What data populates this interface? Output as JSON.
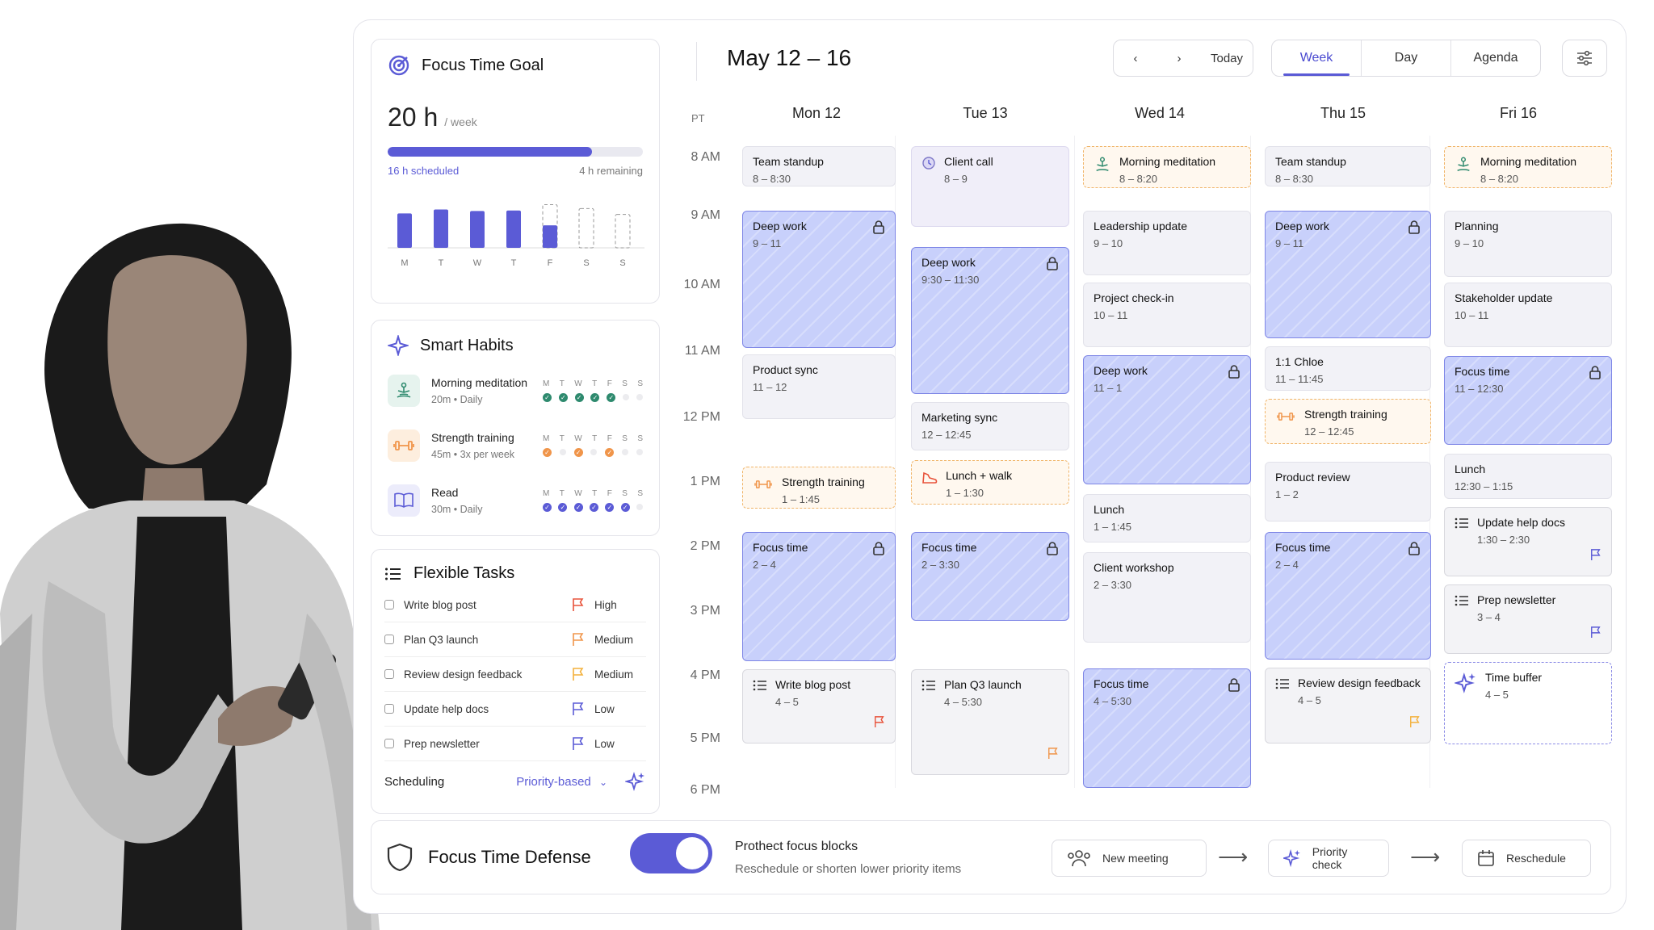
{
  "goal": {
    "title": "Focus Time Goal",
    "hours": "20 h",
    "unit": "/ week",
    "scheduled": "16 h scheduled",
    "remaining": "4 h remaining",
    "progress": 0.8,
    "days": [
      "M",
      "T",
      "W",
      "T",
      "F",
      "S",
      "S"
    ],
    "bars": [
      {
        "v": 0.7,
        "kind": "done"
      },
      {
        "v": 0.78,
        "kind": "done"
      },
      {
        "v": 0.75,
        "kind": "done"
      },
      {
        "v": 0.76,
        "kind": "done"
      },
      {
        "v": 0.88,
        "kind": "partial",
        "filled": 0.52
      },
      {
        "v": 0.8,
        "kind": "empty"
      },
      {
        "v": 0.68,
        "kind": "empty"
      }
    ]
  },
  "habits": {
    "title": "Smart Habits",
    "day_letters": [
      "M",
      "T",
      "W",
      "T",
      "F",
      "S",
      "S"
    ],
    "items": [
      {
        "name": "Morning meditation",
        "dur": "20m",
        "freq": "Daily",
        "color": "#2e8a6e",
        "icon": "meditation-icon",
        "dots": [
          1,
          1,
          1,
          1,
          1,
          0,
          0
        ]
      },
      {
        "name": "Strength training",
        "dur": "45m",
        "freq": "3x per week",
        "color": "#f0954a",
        "icon": "dumbbell-icon",
        "dots": [
          1,
          0,
          1,
          0,
          1,
          0,
          0
        ]
      },
      {
        "name": "Read",
        "dur": "30m",
        "freq": "Daily",
        "color": "#5b5bd6",
        "icon": "book-icon",
        "dots": [
          1,
          1,
          1,
          1,
          1,
          1,
          0
        ]
      }
    ]
  },
  "tasks": {
    "title": "Flexible Tasks",
    "items": [
      {
        "name": "Write blog post",
        "priority": "High",
        "color": "#e8533b"
      },
      {
        "name": "Plan Q3 launch",
        "priority": "Medium",
        "color": "#f0954a"
      },
      {
        "name": "Review design feedback",
        "priority": "Medium",
        "color": "#f3b13c"
      },
      {
        "name": "Update help docs",
        "priority": "Low",
        "color": "#5b5bd6"
      },
      {
        "name": "Prep newsletter",
        "priority": "Low",
        "color": "#5b5bd6"
      }
    ],
    "scheduling_label": "Scheduling",
    "scheduling_value": "Priority-based"
  },
  "calendar": {
    "title": "May 12 – 16",
    "today": "Today",
    "views": [
      "Week",
      "Day",
      "Agenda"
    ],
    "active_view": "Week",
    "tz": "PT",
    "days": [
      "Mon 12",
      "Tue 13",
      "Wed 14",
      "Thu 15",
      "Fri 16"
    ],
    "times": [
      "8 AM",
      "9 AM",
      "10 AM",
      "11 AM",
      "12 PM",
      "1 PM",
      "2 PM",
      "3 PM",
      "4 PM",
      "5 PM",
      "6 PM"
    ],
    "events": [
      {
        "title": "Team standup",
        "time": "8 – 8:30",
        "type": "plain"
      },
      {
        "title": "Deep work",
        "time": "9 – 11",
        "type": "deep"
      },
      {
        "title": "Product sync",
        "time": "11 – 12",
        "type": "plain"
      },
      {
        "title": "Strength training",
        "time": "1 – 1:45",
        "type": "habit"
      },
      {
        "title": "Focus time",
        "time": "2 – 4",
        "type": "deep"
      },
      {
        "title": "Write blog post",
        "time": "4 – 5",
        "type": "task"
      },
      {
        "title": "Client call",
        "time": "8 – 9",
        "type": "client"
      },
      {
        "title": "Deep work",
        "time": "9:30 – 11:30",
        "type": "deep"
      },
      {
        "title": "Marketing sync",
        "time": "12 – 12:45",
        "type": "plain"
      },
      {
        "title": "Lunch + walk",
        "time": "1 – 1:30",
        "type": "habit"
      },
      {
        "title": "Focus time",
        "time": "2 – 3:30",
        "type": "deep"
      },
      {
        "title": "Plan Q3 launch",
        "time": "4 – 5:30",
        "type": "task"
      },
      {
        "title": "Morning meditation",
        "time": "8 – 8:20",
        "type": "habit"
      },
      {
        "title": "Leadership update",
        "time": "9 – 10",
        "type": "plain"
      },
      {
        "title": "Project check-in",
        "time": "10 – 11",
        "type": "plain"
      },
      {
        "title": "Deep work",
        "time": "11 – 1",
        "type": "deep"
      },
      {
        "title": "Lunch",
        "time": "1 – 1:45",
        "type": "plain"
      },
      {
        "title": "Client workshop",
        "time": "2 – 3:30",
        "type": "plain"
      },
      {
        "title": "Focus time",
        "time": "4 – 5:30",
        "type": "deep"
      },
      {
        "title": "Team standup",
        "time": "8 – 8:30",
        "type": "plain"
      },
      {
        "title": "Deep work",
        "time": "9 – 11",
        "type": "deep"
      },
      {
        "title": "1:1 Chloe",
        "time": "11 – 11:45",
        "type": "plain"
      },
      {
        "title": "Strength training",
        "time": "12 – 12:45",
        "type": "habit"
      },
      {
        "title": "Product review",
        "time": "1 – 2",
        "type": "plain"
      },
      {
        "title": "Focus time",
        "time": "2 – 4",
        "type": "deep"
      },
      {
        "title": "Review design feedback",
        "time": "4 – 5",
        "type": "task"
      },
      {
        "title": "Morning meditation",
        "time": "8 – 8:20",
        "type": "habit"
      },
      {
        "title": "Planning",
        "time": "9 – 10",
        "type": "plain"
      },
      {
        "title": "Stakeholder update",
        "time": "10 – 11",
        "type": "plain"
      },
      {
        "title": "Focus time",
        "time": "11 – 12:30",
        "type": "deep"
      },
      {
        "title": "Lunch",
        "time": "12:30 – 1:15",
        "type": "plain"
      },
      {
        "title": "Update help docs",
        "time": "1:30 – 2:30",
        "type": "task"
      },
      {
        "title": "Prep newsletter",
        "time": "3 – 4",
        "type": "task"
      },
      {
        "title": "Time buffer",
        "time": "4 – 5",
        "type": "buffer"
      }
    ]
  },
  "defense": {
    "title": "Focus Time Defense",
    "line1": "Prothect focus blocks",
    "line2": "Reschedule or shorten lower priority items",
    "enabled": true,
    "flow": [
      "New meeting",
      "Priority check",
      "Reschedule"
    ]
  },
  "colors": {
    "accent": "#5b5bd6",
    "deep": "#c8d0fb",
    "habit": "#f0954a",
    "meditation": "#2e8a6e"
  }
}
